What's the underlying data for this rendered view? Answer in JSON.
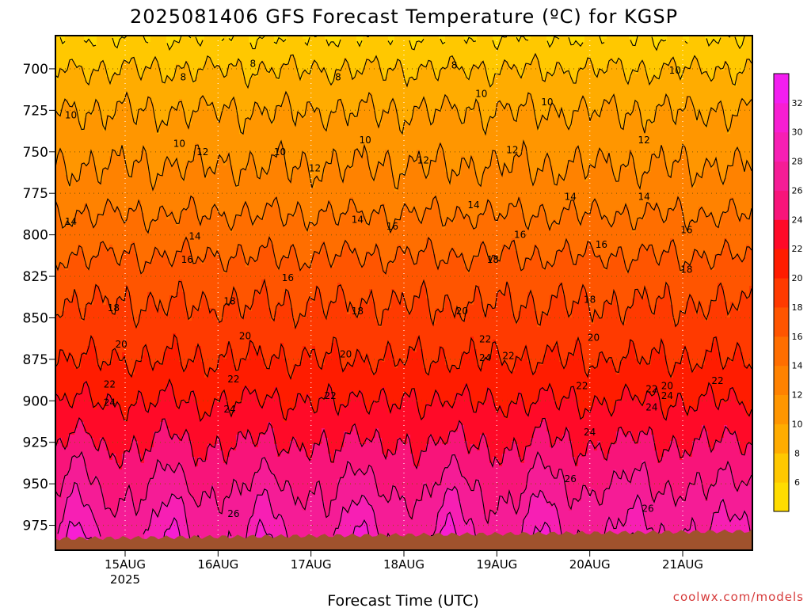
{
  "chart_data": {
    "type": "heatmap",
    "title": "2025081406 GFS Forecast Temperature (ºC) for KGSP",
    "xlabel": "Forecast Time (UTC)",
    "ylabel": "",
    "credit": "coolwx.com/models",
    "y_axis": {
      "reversed": true,
      "range": [
        680,
        990
      ],
      "ticks": [
        700,
        725,
        750,
        775,
        800,
        825,
        850,
        875,
        900,
        925,
        950,
        975
      ]
    },
    "x_axis": {
      "range_hours": [
        0,
        180
      ],
      "ticks": [
        {
          "label": "15AUG",
          "sub": "2025",
          "hour": 18
        },
        {
          "label": "16AUG",
          "sub": "",
          "hour": 42
        },
        {
          "label": "17AUG",
          "sub": "",
          "hour": 66
        },
        {
          "label": "18AUG",
          "sub": "",
          "hour": 90
        },
        {
          "label": "19AUG",
          "sub": "",
          "hour": 114
        },
        {
          "label": "20AUG",
          "sub": "",
          "hour": 138
        },
        {
          "label": "21AUG",
          "sub": "",
          "hour": 162
        }
      ]
    },
    "grid": true,
    "colorbar": {
      "placement": "right",
      "ticks": [
        6,
        8,
        10,
        12,
        14,
        16,
        18,
        20,
        22,
        24,
        26,
        28,
        30,
        32
      ],
      "levels": [
        4,
        6,
        8,
        10,
        12,
        14,
        16,
        18,
        20,
        22,
        24,
        26,
        28,
        30,
        32,
        34
      ],
      "colors": [
        "#ffdc00",
        "#ffc800",
        "#ffac00",
        "#ff9600",
        "#ff8200",
        "#ff6e00",
        "#ff5500",
        "#ff3a00",
        "#ff1c00",
        "#ff0a28",
        "#f8147a",
        "#f51c96",
        "#f71fb4",
        "#f71ed2",
        "#f31ef0"
      ]
    },
    "temperature_profile_by_pressure": [
      {
        "pressure": 690,
        "temp": 7
      },
      {
        "pressure": 700,
        "temp": 8
      },
      {
        "pressure": 725,
        "temp": 10
      },
      {
        "pressure": 750,
        "temp": 11.5
      },
      {
        "pressure": 775,
        "temp": 13
      },
      {
        "pressure": 800,
        "temp": 15
      },
      {
        "pressure": 825,
        "temp": 17
      },
      {
        "pressure": 850,
        "temp": 18.5
      },
      {
        "pressure": 875,
        "temp": 20
      },
      {
        "pressure": 900,
        "temp": 22
      },
      {
        "pressure": 925,
        "temp": 24
      },
      {
        "pressure": 950,
        "temp": 26
      },
      {
        "pressure": 975,
        "temp": 28
      }
    ],
    "contour_labels": [
      {
        "text": "8",
        "hour": 33,
        "pressure": 705
      },
      {
        "text": "8",
        "hour": 51,
        "pressure": 697
      },
      {
        "text": "8",
        "hour": 73,
        "pressure": 705
      },
      {
        "text": "8",
        "hour": 103,
        "pressure": 698
      },
      {
        "text": "10",
        "hour": 4,
        "pressure": 728
      },
      {
        "text": "10",
        "hour": 32,
        "pressure": 745
      },
      {
        "text": "10",
        "hour": 58,
        "pressure": 750
      },
      {
        "text": "10",
        "hour": 80,
        "pressure": 743
      },
      {
        "text": "10",
        "hour": 110,
        "pressure": 715
      },
      {
        "text": "10",
        "hour": 127,
        "pressure": 720
      },
      {
        "text": "10",
        "hour": 160,
        "pressure": 701
      },
      {
        "text": "12",
        "hour": 38,
        "pressure": 750
      },
      {
        "text": "12",
        "hour": 67,
        "pressure": 760
      },
      {
        "text": "12",
        "hour": 95,
        "pressure": 755
      },
      {
        "text": "12",
        "hour": 118,
        "pressure": 749
      },
      {
        "text": "12",
        "hour": 152,
        "pressure": 743
      },
      {
        "text": "14",
        "hour": 4,
        "pressure": 792
      },
      {
        "text": "14",
        "hour": 36,
        "pressure": 801
      },
      {
        "text": "14",
        "hour": 78,
        "pressure": 791
      },
      {
        "text": "14",
        "hour": 108,
        "pressure": 782
      },
      {
        "text": "14",
        "hour": 133,
        "pressure": 777
      },
      {
        "text": "14",
        "hour": 152,
        "pressure": 777
      },
      {
        "text": "16",
        "hour": 34,
        "pressure": 815
      },
      {
        "text": "16",
        "hour": 60,
        "pressure": 826
      },
      {
        "text": "16",
        "hour": 87,
        "pressure": 795
      },
      {
        "text": "16",
        "hour": 120,
        "pressure": 800
      },
      {
        "text": "16",
        "hour": 141,
        "pressure": 806
      },
      {
        "text": "16",
        "hour": 163,
        "pressure": 797
      },
      {
        "text": "18",
        "hour": 15,
        "pressure": 844
      },
      {
        "text": "18",
        "hour": 45,
        "pressure": 840
      },
      {
        "text": "18",
        "hour": 78,
        "pressure": 846
      },
      {
        "text": "18",
        "hour": 113,
        "pressure": 815
      },
      {
        "text": "18",
        "hour": 138,
        "pressure": 839
      },
      {
        "text": "18",
        "hour": 163,
        "pressure": 821
      },
      {
        "text": "20",
        "hour": 17,
        "pressure": 866
      },
      {
        "text": "20",
        "hour": 49,
        "pressure": 861
      },
      {
        "text": "20",
        "hour": 75,
        "pressure": 872
      },
      {
        "text": "20",
        "hour": 105,
        "pressure": 846
      },
      {
        "text": "20",
        "hour": 139,
        "pressure": 862
      },
      {
        "text": "20",
        "hour": 158,
        "pressure": 891
      },
      {
        "text": "22",
        "hour": 14,
        "pressure": 890
      },
      {
        "text": "22",
        "hour": 46,
        "pressure": 887
      },
      {
        "text": "22",
        "hour": 71,
        "pressure": 897
      },
      {
        "text": "22",
        "hour": 111,
        "pressure": 863
      },
      {
        "text": "22",
        "hour": 117,
        "pressure": 873
      },
      {
        "text": "22",
        "hour": 136,
        "pressure": 891
      },
      {
        "text": "22",
        "hour": 154,
        "pressure": 893
      },
      {
        "text": "22",
        "hour": 171,
        "pressure": 888
      },
      {
        "text": "24",
        "hour": 14,
        "pressure": 901
      },
      {
        "text": "24",
        "hour": 45,
        "pressure": 905
      },
      {
        "text": "24",
        "hour": 111,
        "pressure": 874
      },
      {
        "text": "24",
        "hour": 138,
        "pressure": 919
      },
      {
        "text": "24",
        "hour": 154,
        "pressure": 904
      },
      {
        "text": "24",
        "hour": 158,
        "pressure": 897
      },
      {
        "text": "26",
        "hour": 46,
        "pressure": 968
      },
      {
        "text": "26",
        "hour": 133,
        "pressure": 947
      },
      {
        "text": "26",
        "hour": 153,
        "pressure": 965
      }
    ]
  }
}
